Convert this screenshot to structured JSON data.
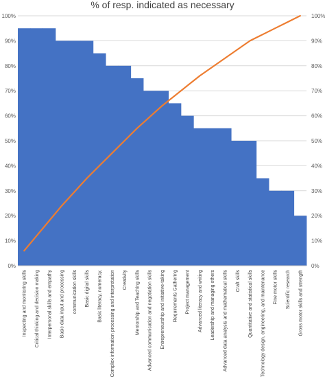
{
  "chart_data": {
    "type": "bar",
    "title": "% of resp. indicated as necessary",
    "categories": [
      "Inspecting and monitoring skills",
      "Critical thinking and decision making",
      "Interpersonal skills and empathy",
      "Basic data input and processing",
      "communication skills",
      "Basic digital skills",
      "Basic literacy, numeracy,",
      "Complex information processing and interpretation",
      "Creativity",
      "Mentorship and Teaching skills",
      "Advanced communication and negotiation skills",
      "Entrepreneurship and initiative-taking",
      "Requirements Gathering",
      "Project management",
      "Advanced literacy and writing",
      "Leadership and managing others",
      "Advanced data analysis and mathematical skills",
      "Craft  skills",
      "Quantitative and statistical skills",
      "Technology design, engineering, and maintenance",
      "Fine motor skills",
      "Scientific research",
      "Gross motor skills and strength"
    ],
    "series": [
      {
        "type": "bar",
        "color": "#4472C4",
        "values": [
          95,
          95,
          95,
          90,
          90,
          90,
          85,
          80,
          80,
          75,
          70,
          70,
          65,
          60,
          55,
          55,
          55,
          50,
          50,
          35,
          30,
          30,
          20
        ]
      },
      {
        "type": "line",
        "color": "#ED7D31",
        "values": [
          6,
          12,
          18,
          24,
          29.5,
          35,
          40,
          45,
          50,
          55,
          59.5,
          64,
          68,
          72,
          76,
          79.5,
          83,
          86.5,
          90,
          92.5,
          95,
          97.5,
          100
        ]
      }
    ],
    "ylim": [
      0,
      100
    ],
    "yticks": [
      "0%",
      "10%",
      "20%",
      "30%",
      "40%",
      "50%",
      "60%",
      "70%",
      "80%",
      "90%",
      "100%"
    ],
    "y2ticks": [
      "0%",
      "10%",
      "20%",
      "30%",
      "40%",
      "50%",
      "60%",
      "70%",
      "80%",
      "90%",
      "100%"
    ],
    "grid": true,
    "xlabel": "",
    "ylabel": ""
  }
}
